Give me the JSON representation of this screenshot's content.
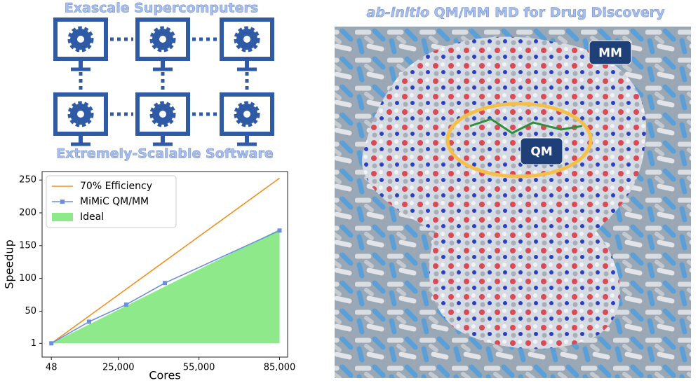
{
  "diagram": {
    "top_label": "Exascale Supercomputers",
    "bottom_label": "Extremely-Scalable Software"
  },
  "image": {
    "title_italic": "ab-initio",
    "title_rest": "QM/MM MD for Drug Discovery",
    "mm_label": "MM",
    "qm_label": "QM"
  },
  "chart_data": {
    "type": "line",
    "xlabel": "Cores",
    "ylabel": "Speedup",
    "xlim": [
      -3400,
      88000
    ],
    "ylim": [
      -20,
      263
    ],
    "xticks": [
      48,
      {
        "value": 25000,
        "label": "25,000"
      },
      {
        "value": 55000,
        "label": "55,000"
      },
      {
        "value": 85000,
        "label": "85,000"
      }
    ],
    "yticks": [
      1,
      50,
      100,
      150,
      200,
      250
    ],
    "legend": "upper left",
    "grid": false,
    "series": [
      {
        "name": "70% Efficiency",
        "color": "#f28e1c",
        "style": "line",
        "x": [
          48,
          85000
        ],
        "values": [
          1,
          253
        ]
      },
      {
        "name": "MiMiC QM/MM",
        "color": "#6a8fe0",
        "style": "line-markers",
        "x": [
          48,
          14100,
          27900,
          42300,
          85000
        ],
        "values": [
          1,
          34,
          60,
          93,
          173
        ]
      },
      {
        "name": "Ideal",
        "color": "#8de98a",
        "style": "area",
        "x": [
          48,
          85000
        ],
        "values": [
          1,
          175
        ]
      }
    ]
  }
}
